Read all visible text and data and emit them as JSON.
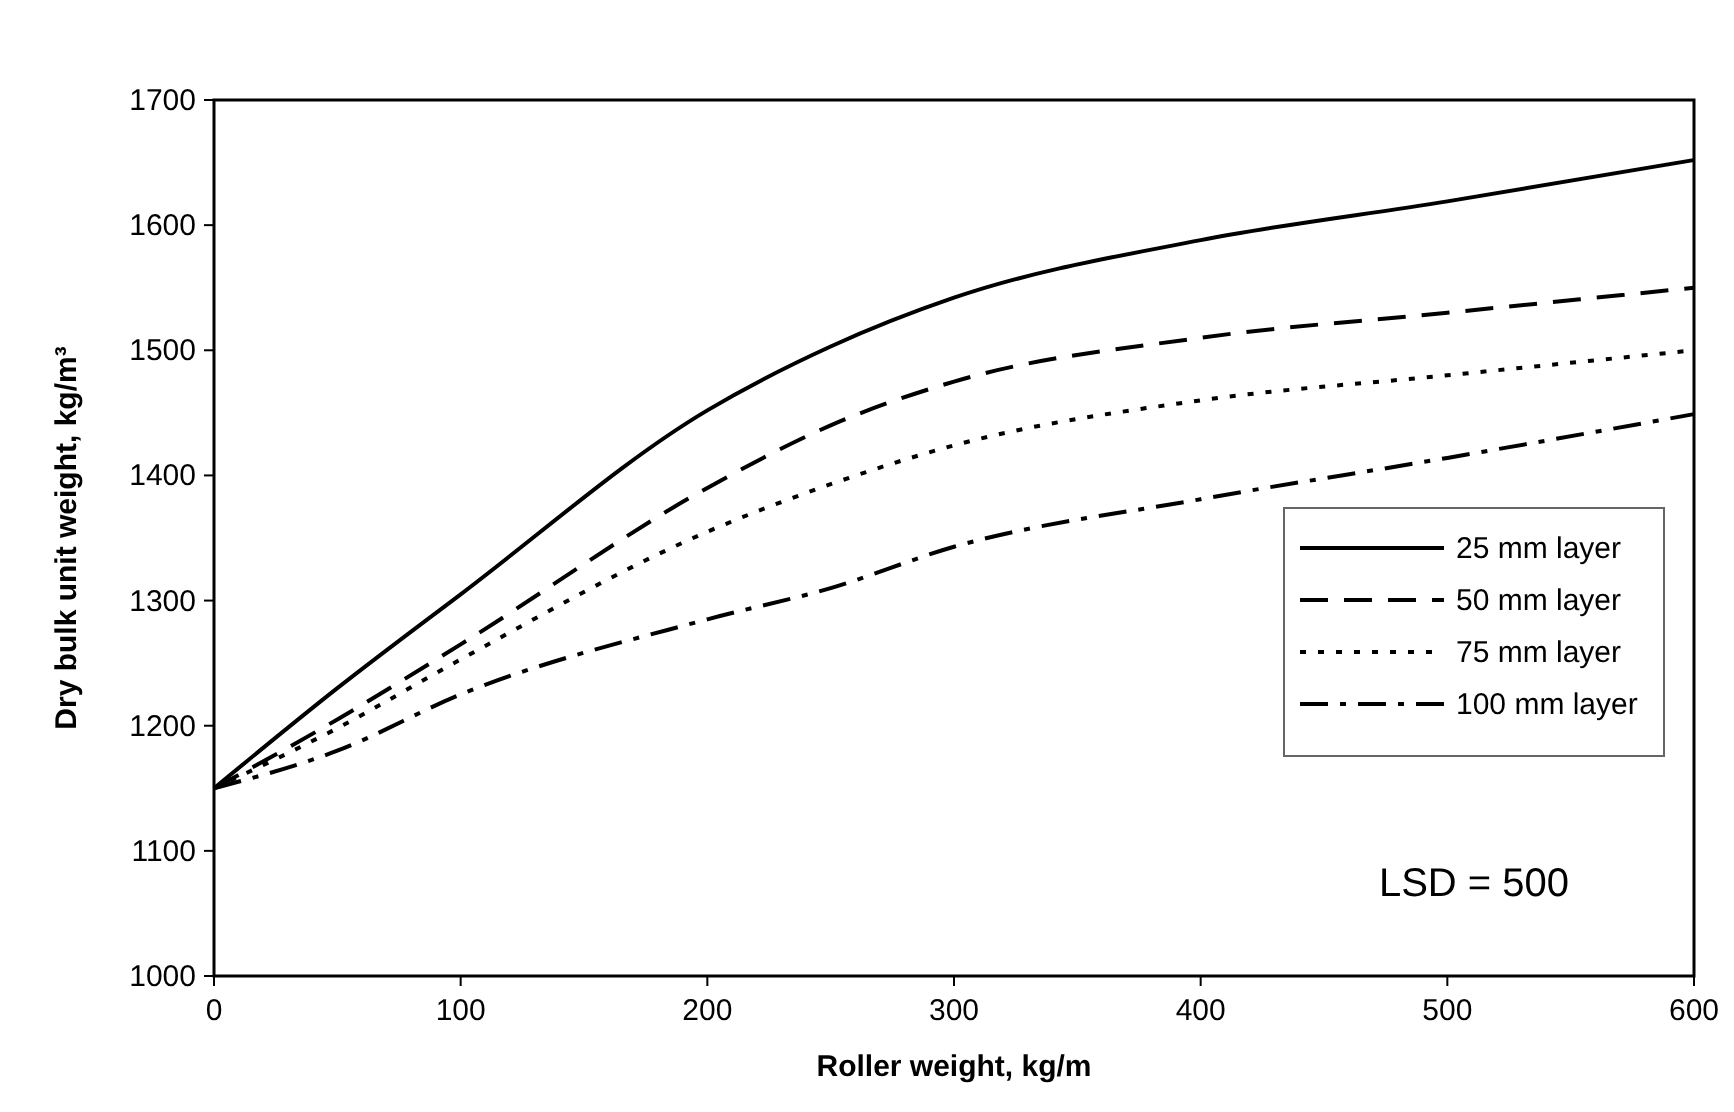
{
  "chart_data": {
    "type": "line",
    "xlabel": "Roller weight,  kg/m",
    "ylabel": "Dry bulk unit weight, kg/m³",
    "x": [
      0,
      50,
      100,
      200,
      250,
      300,
      400,
      500,
      600
    ],
    "xlim": [
      0,
      600
    ],
    "xticks": [
      0,
      100,
      200,
      300,
      400,
      500,
      600
    ],
    "ylim": [
      1000,
      1700
    ],
    "yticks": [
      1000,
      1100,
      1200,
      1300,
      1400,
      1500,
      1600,
      1700
    ],
    "legend": "bottom right",
    "marker": "none",
    "annotations": [
      "LSD = 500"
    ],
    "series": [
      {
        "name": "25 mm layer",
        "color": "#000000",
        "line_style": "solid",
        "values": [
          1150,
          1230,
          1305,
          1452,
          1503,
          1542,
          1588,
          1619,
          1652
        ]
      },
      {
        "name": "50 mm layer",
        "color": "#000000",
        "line_style": "dashed",
        "values": [
          1150,
          1205,
          1265,
          1390,
          1440,
          1475,
          1510,
          1530,
          1550
        ]
      },
      {
        "name": "75 mm layer",
        "color": "#000000",
        "line_style": "dotted",
        "values": [
          1150,
          1198,
          1253,
          1355,
          1393,
          1424,
          1460,
          1480,
          1500
        ]
      },
      {
        "name": "100 mm layer",
        "color": "#000000",
        "line_style": "dashdot",
        "values": [
          1150,
          1180,
          1225,
          1285,
          1310,
          1343,
          1381,
          1414,
          1449
        ]
      }
    ]
  }
}
